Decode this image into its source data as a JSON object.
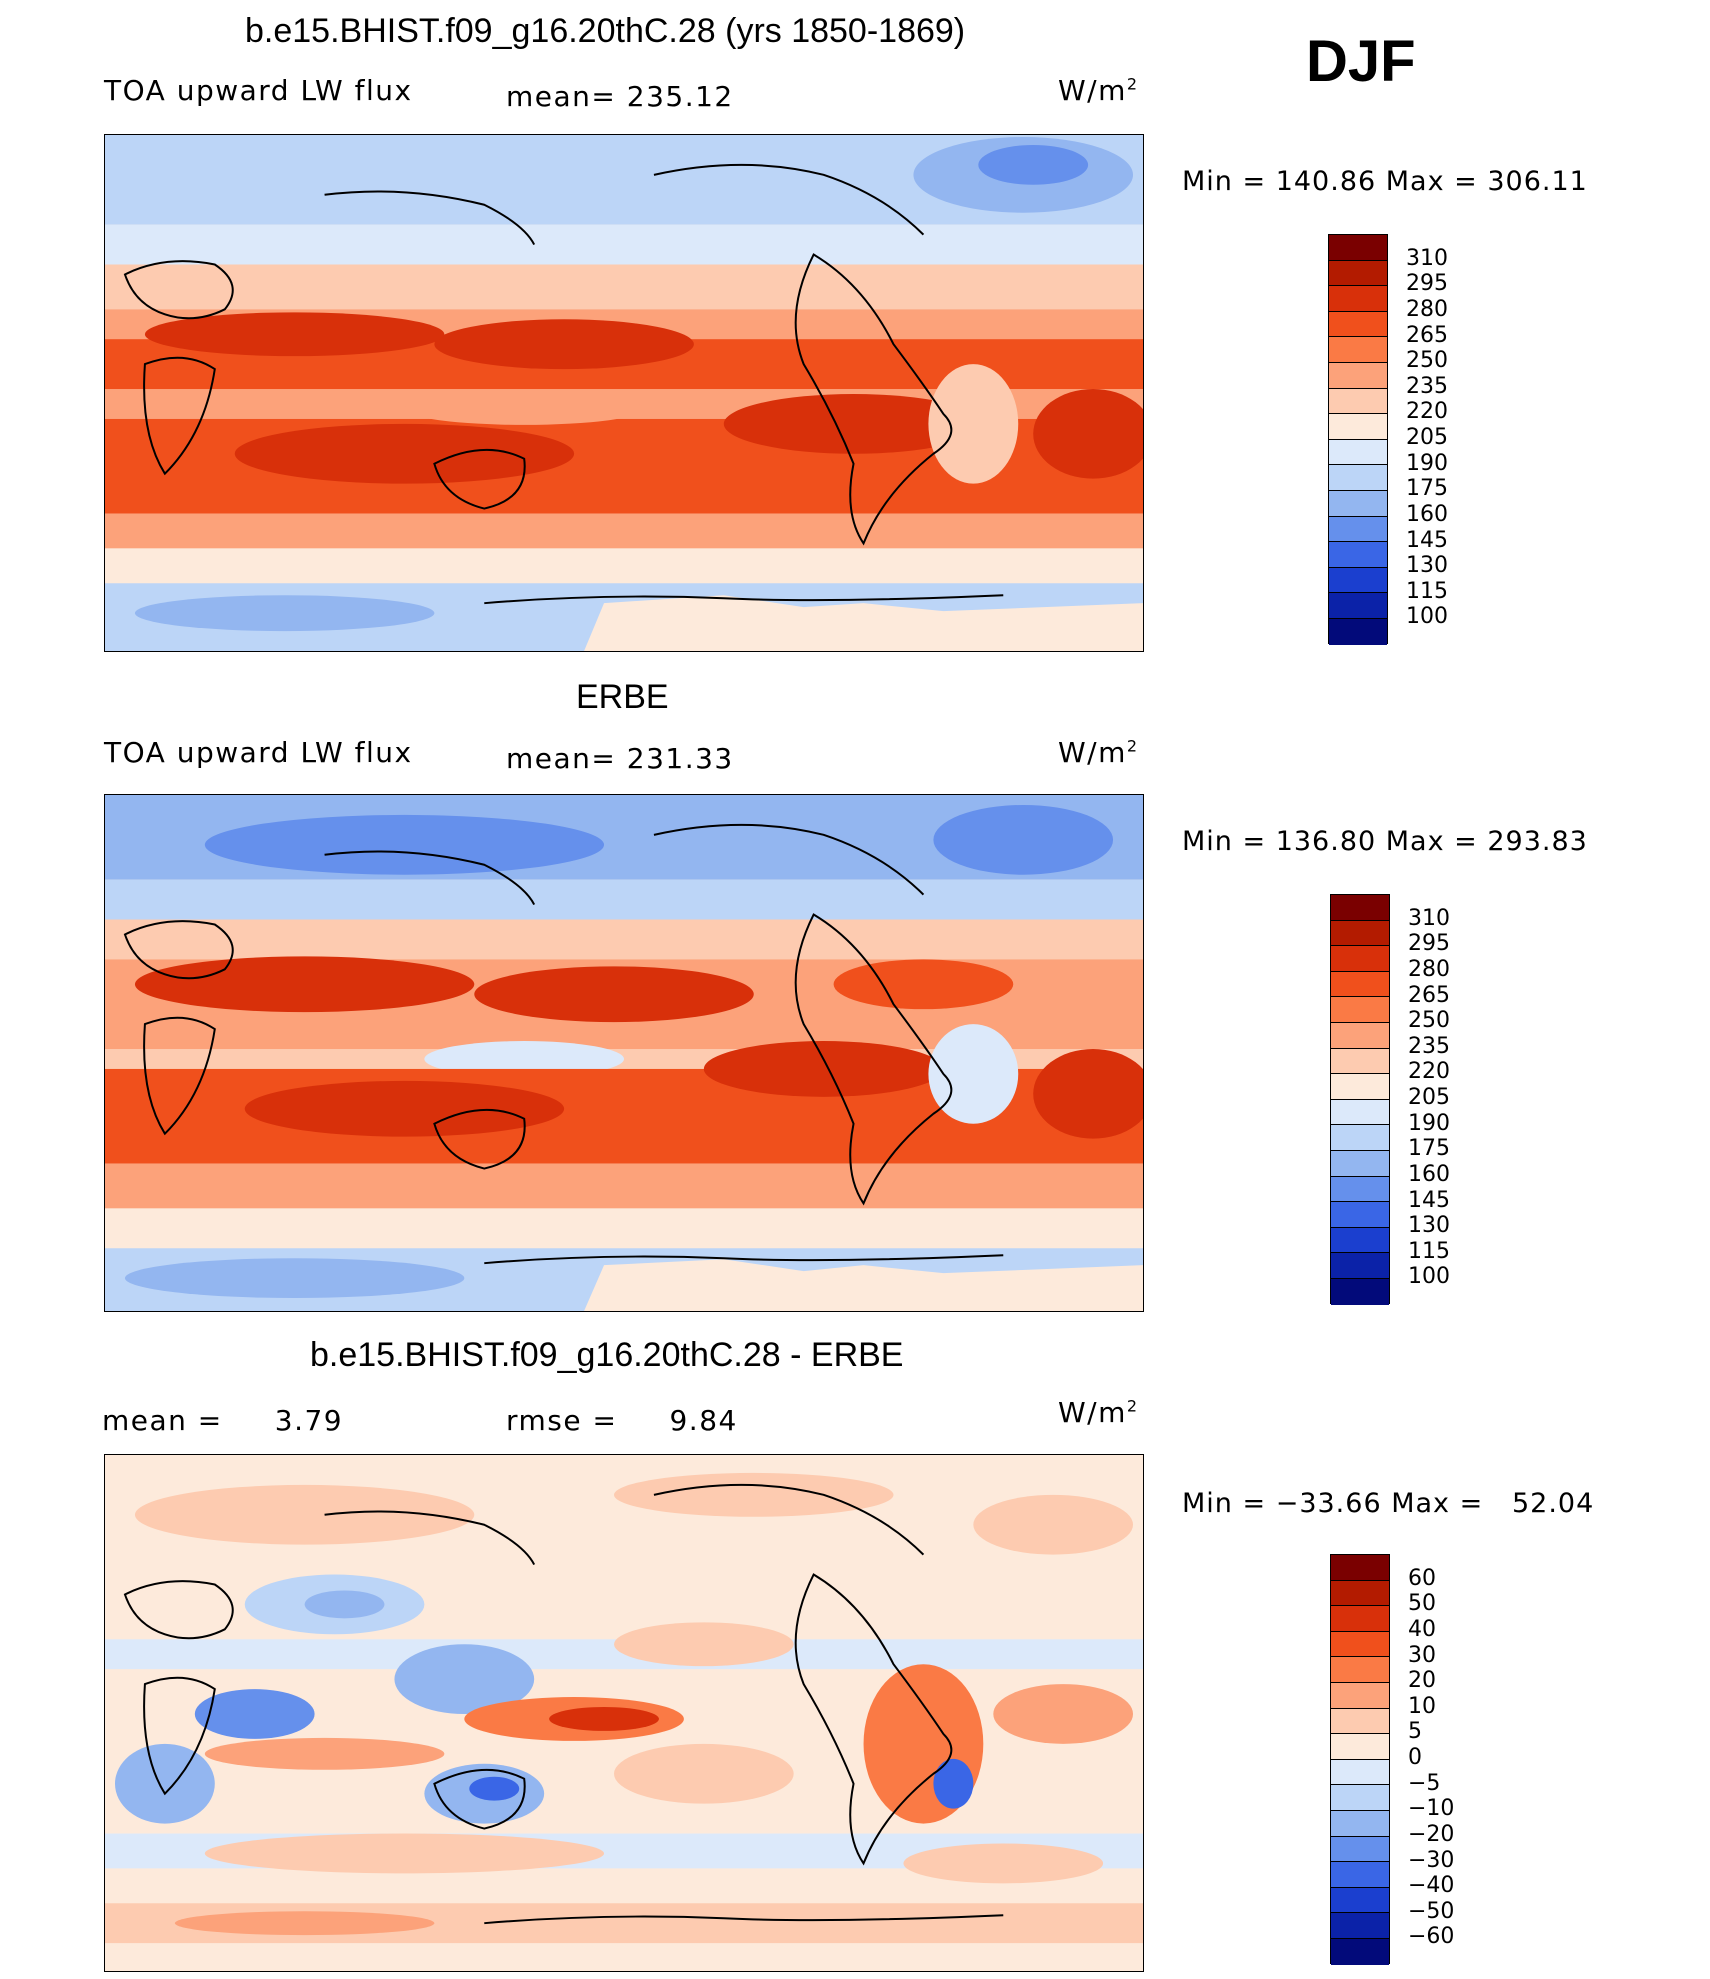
{
  "season": "DJF",
  "panels": [
    {
      "title": "b.e15.BHIST.f09_g16.20thC.28 (yrs 1850-1869)",
      "left_label": "TOA upward LW flux",
      "mid_label": "mean= 235.12",
      "units": "W/m",
      "units_sup": "2",
      "minmax": "Min = 140.86 Max = 306.11",
      "levels": [
        "310",
        "295",
        "280",
        "265",
        "250",
        "235",
        "220",
        "205",
        "190",
        "175",
        "160",
        "145",
        "130",
        "115",
        "100"
      ]
    },
    {
      "title": "ERBE",
      "left_label": "TOA upward LW flux",
      "mid_label": "mean= 231.33",
      "units": "W/m",
      "units_sup": "2",
      "minmax": "Min = 136.80 Max = 293.83",
      "levels": [
        "310",
        "295",
        "280",
        "265",
        "250",
        "235",
        "220",
        "205",
        "190",
        "175",
        "160",
        "145",
        "130",
        "115",
        "100"
      ]
    },
    {
      "title": "b.e15.BHIST.f09_g16.20thC.28 - ERBE",
      "left_label": "mean =     3.79",
      "mid_label": "rmse =     9.84",
      "units": "W/m",
      "units_sup": "2",
      "minmax": "Min = −33.66 Max =   52.04",
      "levels": [
        "60",
        "50",
        "40",
        "30",
        "20",
        "10",
        "5",
        "0",
        "−5",
        "−10",
        "−20",
        "−30",
        "−40",
        "−50",
        "−60"
      ]
    }
  ],
  "colorbar_colors": [
    "#7a0000",
    "#b31b00",
    "#d8300a",
    "#f0501c",
    "#fa7a45",
    "#fca27a",
    "#fdcbb0",
    "#fdeadb",
    "#dce9fa",
    "#bcd5f7",
    "#93b6f0",
    "#6590ec",
    "#3a66e6",
    "#1b3fcf",
    "#0b22a8",
    "#020a7a"
  ],
  "map_palette": {
    "warm_dark": "#d8300a",
    "warm_mid": "#f0501c",
    "warm_light": "#fca27a",
    "warm_pale": "#fdcbb0",
    "neutral": "#fdeadb",
    "cool_pale": "#dce9fa",
    "cool_light": "#bcd5f7",
    "cool_mid": "#93b6f0",
    "cool_dark": "#6590ec",
    "cool_deep": "#3a66e6"
  }
}
